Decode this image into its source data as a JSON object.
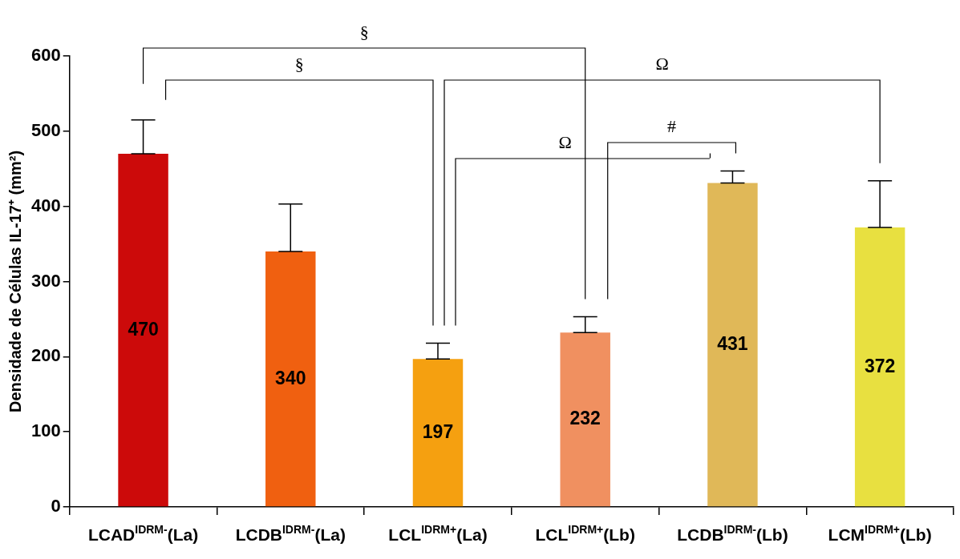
{
  "chart_data": {
    "type": "bar",
    "ylabel": "Densidade de Células IL-17⁺ (mm²)",
    "categories": [
      "LCAD$^{IDRM-}$(La)",
      "LCDB$^{IDRM-}$(La)",
      "LCL$^{IDRM+}$(La)",
      "LCL$^{IDRM+}$(Lb)",
      "LCDB$^{IDRM-}$(Lb)",
      "LCM$^{IDRM+}$(Lb)"
    ],
    "values": [
      470,
      340,
      197,
      232,
      431,
      372
    ],
    "colors": [
      "#cc0a0a",
      "#f06010",
      "#f5a010",
      "#f09060",
      "#e0b858",
      "#e8e040"
    ],
    "errors": [
      [
        470,
        515
      ],
      [
        340,
        403
      ],
      [
        197,
        218
      ],
      [
        232,
        253
      ],
      [
        431,
        447
      ],
      [
        372,
        434
      ]
    ],
    "ylim": [
      0,
      600
    ],
    "yticks": [
      0,
      100,
      200,
      300,
      400,
      500,
      600
    ],
    "data_labels": true,
    "grid": false,
    "legend": false,
    "annotations": [
      "§",
      "§",
      "Ω",
      "Ω",
      "#"
    ]
  }
}
